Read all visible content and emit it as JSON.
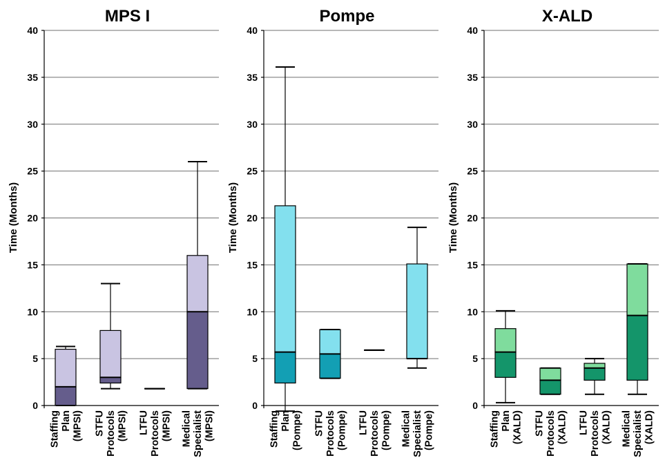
{
  "chart_data": [
    {
      "type": "box",
      "title": "MPS I",
      "ylabel": "Time (Months)",
      "ylim": [
        0,
        40
      ],
      "yticks": [
        "0",
        "5",
        "10",
        "15",
        "20",
        "25",
        "30",
        "35",
        "40"
      ],
      "grid": true,
      "colors": {
        "lower": "#655d8c",
        "upper": "#c9c4e2"
      },
      "categories": [
        [
          "Staffing",
          "Plan",
          "(MPSI)"
        ],
        [
          "STFU",
          "Protocols",
          "(MPSI)"
        ],
        [
          "LTFU",
          "Protocols",
          "(MPSI)"
        ],
        [
          "Medical",
          "Specialist",
          "(MPSI)"
        ]
      ],
      "boxes": [
        {
          "min": 0,
          "q1": 0,
          "median": 2,
          "q3": 6,
          "max": 6.3
        },
        {
          "min": 1.8,
          "q1": 2.4,
          "median": 3,
          "q3": 8,
          "max": 13
        },
        {
          "min": 1.8,
          "q1": 1.8,
          "median": 1.8,
          "q3": 1.8,
          "max": 1.8
        },
        {
          "min": 1.8,
          "q1": 1.8,
          "median": 10,
          "q3": 16,
          "max": 26
        }
      ]
    },
    {
      "type": "box",
      "title": "Pompe",
      "ylabel": "Time (Months)",
      "ylim": [
        0,
        40
      ],
      "yticks": [
        "0",
        "5",
        "10",
        "15",
        "20",
        "25",
        "30",
        "35",
        "40"
      ],
      "grid": true,
      "colors": {
        "lower": "#139fb4",
        "upper": "#83e0ee"
      },
      "categories": [
        [
          "Staffing",
          "Plan",
          "(Pompe)"
        ],
        [
          "STFU",
          "Protocols",
          "(Pompe)"
        ],
        [
          "LTFU",
          "Protocols",
          "(Pompe)"
        ],
        [
          "Medical",
          "Specialist",
          "(Pompe)"
        ]
      ],
      "boxes": [
        {
          "min": -0.6,
          "q1": 2.4,
          "median": 5.7,
          "q3": 21.3,
          "max": 36.1
        },
        {
          "min": 2.9,
          "q1": 2.9,
          "median": 5.5,
          "q3": 8.1,
          "max": 8.1
        },
        {
          "min": 5.9,
          "q1": 5.9,
          "median": 5.9,
          "q3": 5.9,
          "max": 5.9
        },
        {
          "min": 4,
          "q1": 5,
          "median": 5,
          "q3": 15.1,
          "max": 19
        }
      ]
    },
    {
      "type": "box",
      "title": "X-ALD",
      "ylabel": "Time (Months)",
      "ylim": [
        0,
        40
      ],
      "yticks": [
        "0",
        "5",
        "10",
        "15",
        "20",
        "25",
        "30",
        "35",
        "40"
      ],
      "grid": true,
      "colors": {
        "lower": "#14956a",
        "upper": "#7fdc9d"
      },
      "categories": [
        [
          "Staffing",
          "Plan",
          "(XALD)"
        ],
        [
          "STFU",
          "Protocols",
          "(XALD)"
        ],
        [
          "LTFU",
          "Protocols",
          "(XALD)"
        ],
        [
          "Medical",
          "Specialist",
          "(XALD)"
        ]
      ],
      "boxes": [
        {
          "min": 0.3,
          "q1": 3,
          "median": 5.7,
          "q3": 8.2,
          "max": 10.1
        },
        {
          "min": 1.2,
          "q1": 1.2,
          "median": 2.7,
          "q3": 4,
          "max": 4
        },
        {
          "min": 1.2,
          "q1": 2.7,
          "median": 4,
          "q3": 4.5,
          "max": 5
        },
        {
          "min": 1.2,
          "q1": 2.7,
          "median": 9.6,
          "q3": 15.1,
          "max": 15.1
        }
      ]
    }
  ]
}
